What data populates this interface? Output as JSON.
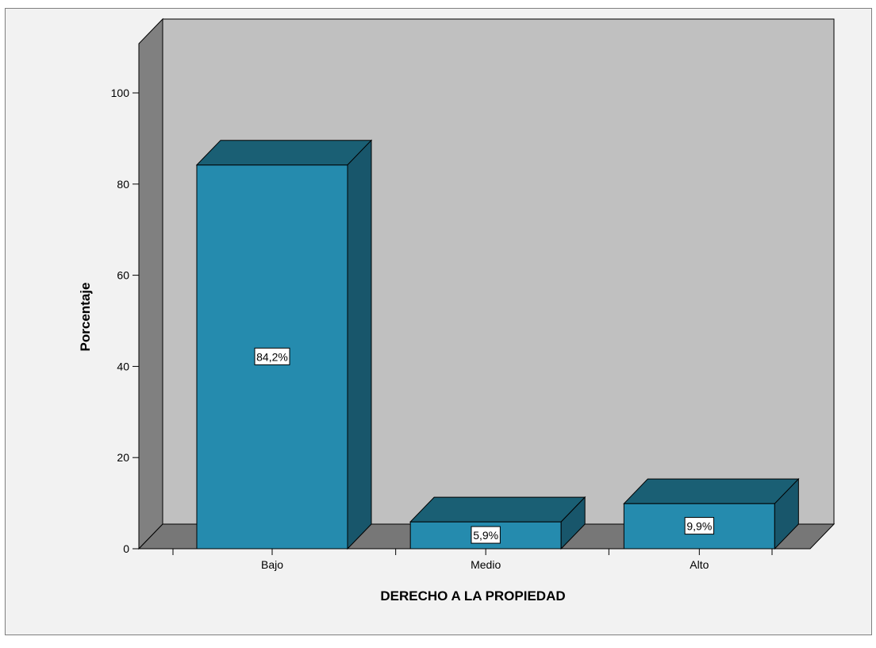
{
  "chart_data": {
    "type": "bar",
    "categories": [
      "Bajo",
      "Medio",
      "Alto"
    ],
    "values": [
      84.2,
      5.9,
      9.9
    ],
    "data_labels": [
      "84,2%",
      "5,9%",
      "9,9%"
    ],
    "xlabel": "DERECHO A LA PROPIEDAD",
    "ylabel": "Porcentaje",
    "ylim": [
      0,
      100
    ],
    "yticks": [
      "0",
      "20",
      "40",
      "60",
      "80",
      "100"
    ],
    "style": "3d",
    "grid": false,
    "colors": {
      "bar_front": "#258bae",
      "bar_top": "#1a5f74",
      "bar_side": "#18566b",
      "wall": "#c0c0c0",
      "side_wall": "#808080",
      "floor": "#777777",
      "background": "#f2f2f2"
    }
  }
}
